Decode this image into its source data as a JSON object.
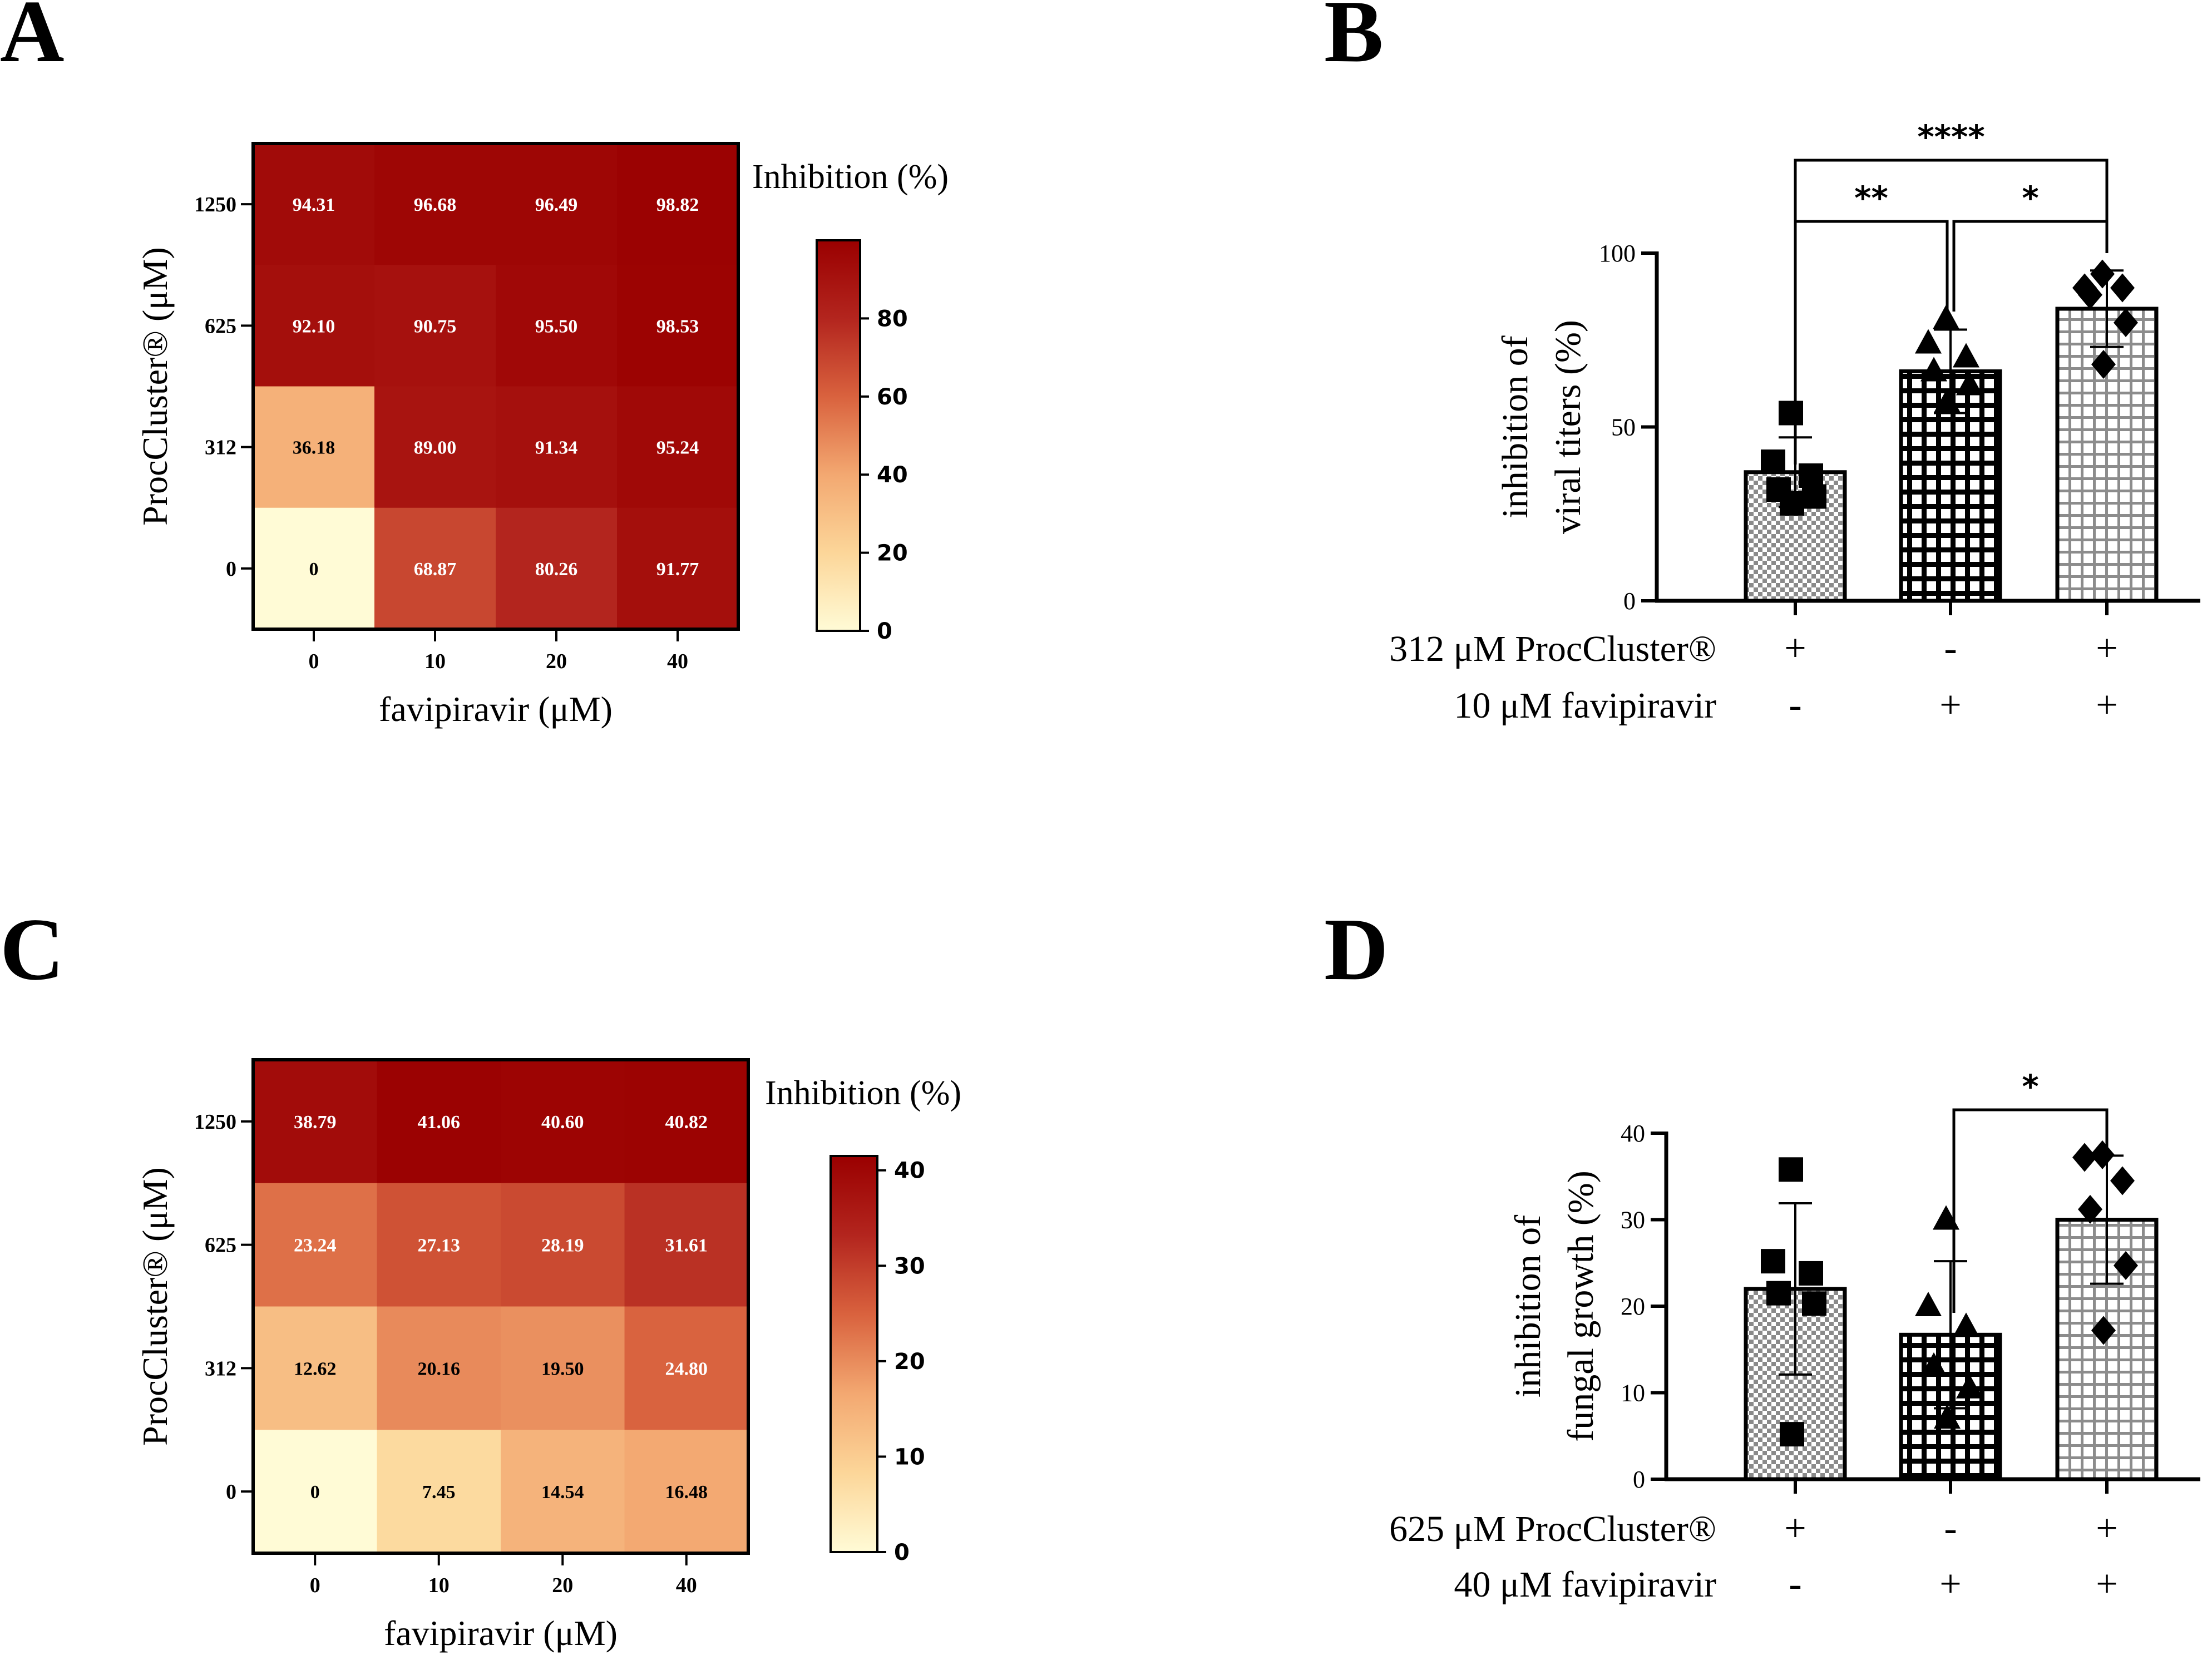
{
  "panels": {
    "a": "A",
    "b": "B",
    "c": "C",
    "d": "D"
  },
  "chart_data": [
    {
      "id": "A",
      "type": "heatmap",
      "title": "",
      "xlabel": "favipiravir (μM)",
      "ylabel": "ProcCluster® (μM)",
      "x": [
        "0",
        "10",
        "20",
        "40"
      ],
      "y": [
        "1250",
        "625",
        "312",
        "0"
      ],
      "values": [
        [
          "94.31",
          "96.68",
          "96.49",
          "98.82"
        ],
        [
          "92.10",
          "90.75",
          "95.50",
          "98.53"
        ],
        [
          "36.18",
          "89.00",
          "91.34",
          "95.24"
        ],
        [
          "0",
          "68.87",
          "80.26",
          "91.77"
        ]
      ],
      "colorbar": {
        "label": "Inhibition (%)",
        "range": [
          0,
          100
        ],
        "ticks": [
          "0",
          "20",
          "40",
          "60",
          "80"
        ],
        "colors": [
          "#fffbd6",
          "#fcd699",
          "#f3a871",
          "#d9623e",
          "#b3251e",
          "#9a0000"
        ]
      }
    },
    {
      "id": "B",
      "type": "bar",
      "title": "",
      "ylabel_lines": [
        "inhibition of",
        "viral titers  (%)"
      ],
      "ylim": [
        0,
        100
      ],
      "yticks": [
        "0",
        "50",
        "100"
      ],
      "means": [
        37,
        66,
        84
      ],
      "sd": [
        10,
        12,
        11
      ],
      "points": [
        [
          54,
          40,
          36,
          32,
          30,
          28
        ],
        [
          81,
          74,
          70,
          66,
          62,
          57
        ],
        [
          94,
          90,
          90,
          88,
          80,
          68
        ]
      ],
      "markers": [
        "square",
        "triangle",
        "diamond"
      ],
      "patterns": [
        "checker",
        "grid-black",
        "grid-white"
      ],
      "conditions": [
        {
          "label": "312 μM ProcCluster®",
          "signs": [
            "+",
            "-",
            "+"
          ]
        },
        {
          "label": "10 μM favipiravir",
          "signs": [
            "-",
            "+",
            "+"
          ]
        }
      ],
      "significance": [
        {
          "from": 0,
          "to": 1,
          "label": "**"
        },
        {
          "from": 1,
          "to": 2,
          "label": "*"
        },
        {
          "from": 0,
          "to": 2,
          "label": "****"
        }
      ]
    },
    {
      "id": "C",
      "type": "heatmap",
      "title": "",
      "xlabel": "favipiravir (μM)",
      "ylabel": "ProcCluster® (μM)",
      "x": [
        "0",
        "10",
        "20",
        "40"
      ],
      "y": [
        "1250",
        "625",
        "312",
        "0"
      ],
      "values": [
        [
          "38.79",
          "41.06",
          "40.60",
          "40.82"
        ],
        [
          "23.24",
          "27.13",
          "28.19",
          "31.61"
        ],
        [
          "12.62",
          "20.16",
          "19.50",
          "24.80"
        ],
        [
          "0",
          "7.45",
          "14.54",
          "16.48"
        ]
      ],
      "colorbar": {
        "label": "Inhibition (%)",
        "range": [
          0,
          41.5
        ],
        "ticks": [
          "0",
          "10",
          "20",
          "30",
          "40"
        ],
        "colors": [
          "#fffbd6",
          "#fcd699",
          "#f3a871",
          "#d9623e",
          "#b3251e",
          "#9a0000"
        ]
      }
    },
    {
      "id": "D",
      "type": "bar",
      "title": "",
      "ylabel_lines": [
        "inhibition of",
        "fungal growth  (%)"
      ],
      "ylim": [
        0,
        40
      ],
      "yticks": [
        "0",
        "10",
        "20",
        "30",
        "40"
      ],
      "means": [
        22,
        16.7,
        30
      ],
      "sd": [
        9.9,
        8.5,
        7.4
      ],
      "points": [
        [
          35.8,
          25.2,
          23.8,
          21.5,
          20.3,
          5.2
        ],
        [
          30,
          20,
          17.6,
          13,
          10.5,
          7
        ],
        [
          37.5,
          37.2,
          34.5,
          31.2,
          24.7,
          17.2
        ]
      ],
      "markers": [
        "square",
        "triangle",
        "diamond"
      ],
      "patterns": [
        "checker",
        "grid-black",
        "grid-white"
      ],
      "conditions": [
        {
          "label": "625 μM ProcCluster®",
          "signs": [
            "+",
            "-",
            "+"
          ]
        },
        {
          "label": "40 μM favipiravir",
          "signs": [
            "-",
            "+",
            "+"
          ]
        }
      ],
      "significance": [
        {
          "from": 1,
          "to": 2,
          "label": "*"
        }
      ]
    }
  ]
}
